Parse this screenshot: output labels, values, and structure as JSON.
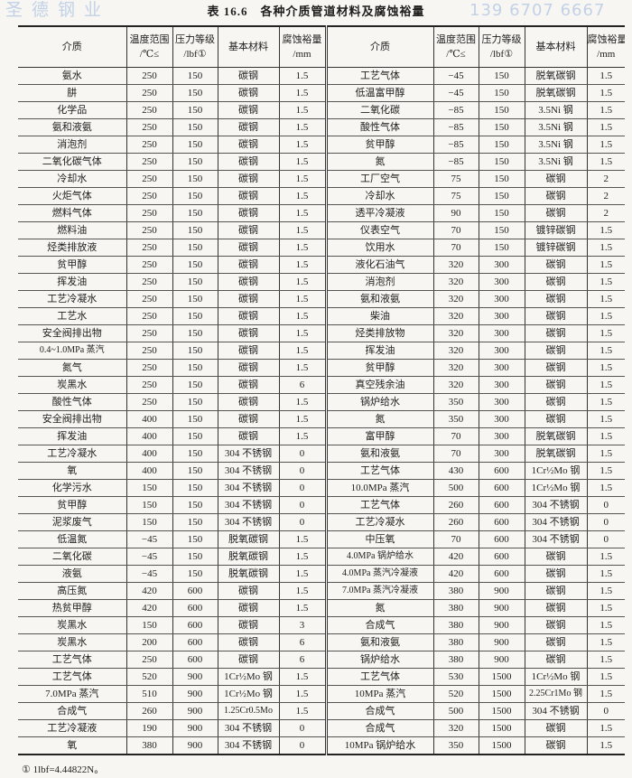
{
  "title": "表 16.6　各种介质管道材料及腐蚀裕量",
  "watermark": {
    "line1": "圣德钢业",
    "line2": "139 6707 6667"
  },
  "headers": [
    {
      "l1": "介质",
      "l2": ""
    },
    {
      "l1": "温度范围",
      "l2": "/℃≤"
    },
    {
      "l1": "压力等级",
      "l2": "/lbf①"
    },
    {
      "l1": "基本材料",
      "l2": ""
    },
    {
      "l1": "腐蚀裕量",
      "l2": "/mm"
    }
  ],
  "rows": [
    [
      [
        "氨水",
        "250",
        "150",
        "碳钢",
        "1.5"
      ],
      [
        "工艺气体",
        "−45",
        "150",
        "脱氧碳钢",
        "1.5"
      ]
    ],
    [
      [
        "肼",
        "250",
        "150",
        "碳钢",
        "1.5"
      ],
      [
        "低温富甲醇",
        "−45",
        "150",
        "脱氧碳钢",
        "1.5"
      ]
    ],
    [
      [
        "化学品",
        "250",
        "150",
        "碳钢",
        "1.5"
      ],
      [
        "二氧化碳",
        "−85",
        "150",
        "3.5Ni 钢",
        "1.5"
      ]
    ],
    [
      [
        "氨和液氨",
        "250",
        "150",
        "碳钢",
        "1.5"
      ],
      [
        "酸性气体",
        "−85",
        "150",
        "3.5Ni 钢",
        "1.5"
      ]
    ],
    [
      [
        "消泡剂",
        "250",
        "150",
        "碳钢",
        "1.5"
      ],
      [
        "贫甲醇",
        "−85",
        "150",
        "3.5Ni 钢",
        "1.5"
      ]
    ],
    [
      [
        "二氧化碳气体",
        "250",
        "150",
        "碳钢",
        "1.5"
      ],
      [
        "氮",
        "−85",
        "150",
        "3.5Ni 钢",
        "1.5"
      ]
    ],
    [
      [
        "冷却水",
        "250",
        "150",
        "碳钢",
        "1.5"
      ],
      [
        "工厂空气",
        "75",
        "150",
        "碳钢",
        "2"
      ]
    ],
    [
      [
        "火炬气体",
        "250",
        "150",
        "碳钢",
        "1.5"
      ],
      [
        "冷却水",
        "75",
        "150",
        "碳钢",
        "2"
      ]
    ],
    [
      [
        "燃料气体",
        "250",
        "150",
        "碳钢",
        "1.5"
      ],
      [
        "透平冷凝液",
        "90",
        "150",
        "碳钢",
        "2"
      ]
    ],
    [
      [
        "燃料油",
        "250",
        "150",
        "碳钢",
        "1.5"
      ],
      [
        "仪表空气",
        "70",
        "150",
        "镀锌碳钢",
        "1.5"
      ]
    ],
    [
      [
        "烃类排放液",
        "250",
        "150",
        "碳钢",
        "1.5"
      ],
      [
        "饮用水",
        "70",
        "150",
        "镀锌碳钢",
        "1.5"
      ]
    ],
    [
      [
        "贫甲醇",
        "250",
        "150",
        "碳钢",
        "1.5"
      ],
      [
        "液化石油气",
        "320",
        "300",
        "碳钢",
        "1.5"
      ]
    ],
    [
      [
        "挥发油",
        "250",
        "150",
        "碳钢",
        "1.5"
      ],
      [
        "消泡剂",
        "320",
        "300",
        "碳钢",
        "1.5"
      ]
    ],
    [
      [
        "工艺冷凝水",
        "250",
        "150",
        "碳钢",
        "1.5"
      ],
      [
        "氨和液氨",
        "320",
        "300",
        "碳钢",
        "1.5"
      ]
    ],
    [
      [
        "工艺水",
        "250",
        "150",
        "碳钢",
        "1.5"
      ],
      [
        "柴油",
        "320",
        "300",
        "碳钢",
        "1.5"
      ]
    ],
    [
      [
        "安全阀排出物",
        "250",
        "150",
        "碳钢",
        "1.5"
      ],
      [
        "烃类排放物",
        "320",
        "300",
        "碳钢",
        "1.5"
      ]
    ],
    [
      [
        "0.4~1.0MPa 蒸汽",
        "250",
        "150",
        "碳钢",
        "1.5"
      ],
      [
        "挥发油",
        "320",
        "300",
        "碳钢",
        "1.5"
      ]
    ],
    [
      [
        "氮气",
        "250",
        "150",
        "碳钢",
        "1.5"
      ],
      [
        "贫甲醇",
        "320",
        "300",
        "碳钢",
        "1.5"
      ]
    ],
    [
      [
        "炭黑水",
        "250",
        "150",
        "碳钢",
        "6"
      ],
      [
        "真空残余油",
        "320",
        "300",
        "碳钢",
        "1.5"
      ]
    ],
    [
      [
        "酸性气体",
        "250",
        "150",
        "碳钢",
        "1.5"
      ],
      [
        "锅炉给水",
        "350",
        "300",
        "碳钢",
        "1.5"
      ]
    ],
    [
      [
        "安全阀排出物",
        "400",
        "150",
        "碳钢",
        "1.5"
      ],
      [
        "氮",
        "350",
        "300",
        "碳钢",
        "1.5"
      ]
    ],
    [
      [
        "挥发油",
        "400",
        "150",
        "碳钢",
        "1.5"
      ],
      [
        "富甲醇",
        "70",
        "300",
        "脱氧碳钢",
        "1.5"
      ]
    ],
    [
      [
        "工艺冷凝水",
        "400",
        "150",
        "304 不锈钢",
        "0"
      ],
      [
        "氨和液氨",
        "70",
        "300",
        "脱氧碳钢",
        "1.5"
      ]
    ],
    [
      [
        "氧",
        "400",
        "150",
        "304 不锈钢",
        "0"
      ],
      [
        "工艺气体",
        "430",
        "600",
        "1Cr½Mo 钢",
        "1.5"
      ]
    ],
    [
      [
        "化学污水",
        "150",
        "150",
        "304 不锈钢",
        "0"
      ],
      [
        "10.0MPa 蒸汽",
        "500",
        "600",
        "1Cr½Mo 钢",
        "1.5"
      ]
    ],
    [
      [
        "贫甲醇",
        "150",
        "150",
        "304 不锈钢",
        "0"
      ],
      [
        "工艺气体",
        "260",
        "600",
        "304 不锈钢",
        "0"
      ]
    ],
    [
      [
        "泥浆废气",
        "150",
        "150",
        "304 不锈钢",
        "0"
      ],
      [
        "工艺冷凝水",
        "260",
        "600",
        "304 不锈钢",
        "0"
      ]
    ],
    [
      [
        "低温氮",
        "−45",
        "150",
        "脱氧碳钢",
        "1.5"
      ],
      [
        "中压氧",
        "70",
        "600",
        "304 不锈钢",
        "0"
      ]
    ],
    [
      [
        "二氧化碳",
        "−45",
        "150",
        "脱氧碳钢",
        "1.5"
      ],
      [
        "4.0MPa 锅炉给水",
        "420",
        "600",
        "碳钢",
        "1.5"
      ]
    ],
    [
      [
        "液氨",
        "−45",
        "150",
        "脱氧碳钢",
        "1.5"
      ],
      [
        "4.0MPa 蒸汽冷凝液",
        "420",
        "600",
        "碳钢",
        "1.5"
      ]
    ],
    [
      [
        "高压氮",
        "420",
        "600",
        "碳钢",
        "1.5"
      ],
      [
        "7.0MPa 蒸汽冷凝液",
        "380",
        "900",
        "碳钢",
        "1.5"
      ]
    ],
    [
      [
        "热贫甲醇",
        "420",
        "600",
        "碳钢",
        "1.5"
      ],
      [
        "氮",
        "380",
        "900",
        "碳钢",
        "1.5"
      ]
    ],
    [
      [
        "炭黑水",
        "150",
        "600",
        "碳钢",
        "3"
      ],
      [
        "合成气",
        "380",
        "900",
        "碳钢",
        "1.5"
      ]
    ],
    [
      [
        "炭黑水",
        "200",
        "600",
        "碳钢",
        "6"
      ],
      [
        "氨和液氨",
        "380",
        "900",
        "碳钢",
        "1.5"
      ]
    ],
    [
      [
        "工艺气体",
        "250",
        "600",
        "碳钢",
        "6"
      ],
      [
        "锅炉给水",
        "380",
        "900",
        "碳钢",
        "1.5"
      ]
    ],
    [
      [
        "工艺气体",
        "520",
        "900",
        "1Cr½Mo 钢",
        "1.5"
      ],
      [
        "工艺气体",
        "530",
        "1500",
        "1Cr½Mo 钢",
        "1.5"
      ]
    ],
    [
      [
        "7.0MPa 蒸汽",
        "510",
        "900",
        "1Cr½Mo 钢",
        "1.5"
      ],
      [
        "10MPa 蒸汽",
        "520",
        "1500",
        "2.25Cr1Mo 钢",
        "1.5"
      ]
    ],
    [
      [
        "合成气",
        "260",
        "900",
        "1.25Cr0.5Mo",
        "1.5"
      ],
      [
        "合成气",
        "500",
        "1500",
        "304 不锈钢",
        "0"
      ]
    ],
    [
      [
        "工艺冷凝液",
        "190",
        "900",
        "304 不锈钢",
        "0"
      ],
      [
        "合成气",
        "320",
        "1500",
        "碳钢",
        "1.5"
      ]
    ],
    [
      [
        "氧",
        "380",
        "900",
        "304 不锈钢",
        "0"
      ],
      [
        "10MPa 锅炉给水",
        "350",
        "1500",
        "碳钢",
        "1.5"
      ]
    ]
  ],
  "footnote": "① 1lbf=4.44822N。"
}
